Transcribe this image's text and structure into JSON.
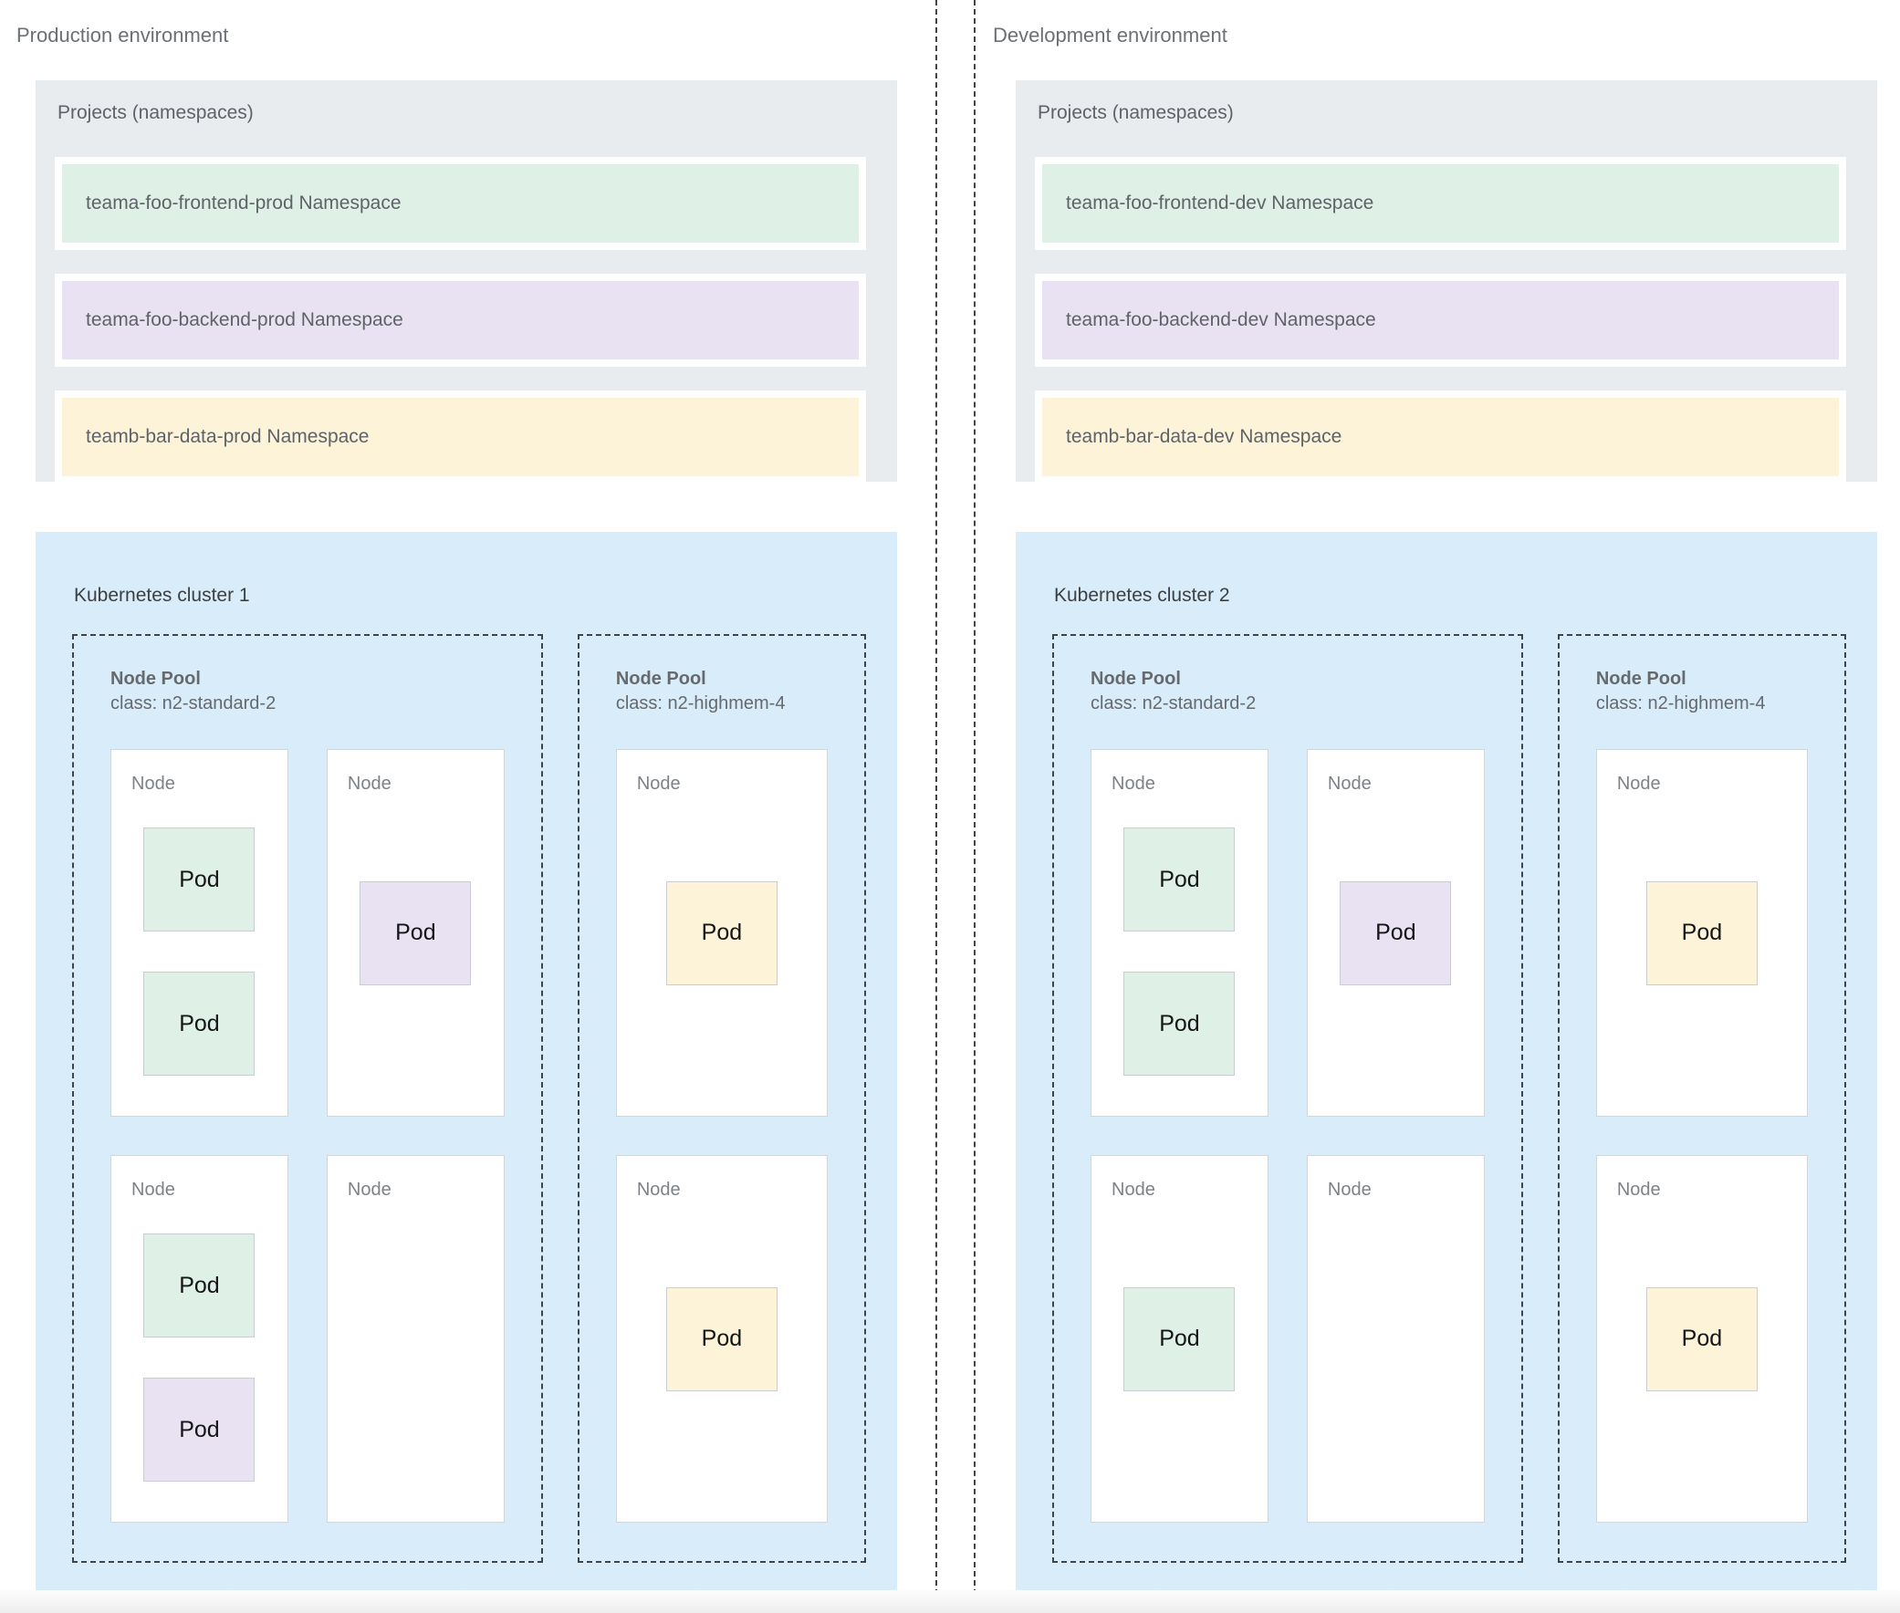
{
  "colors": {
    "green": "#dff0e7",
    "purple": "#e9e2f3",
    "yellow": "#fcf3d8",
    "cluster_bg": "#d8edf9",
    "projects_bg": "#e8ecef"
  },
  "environments": [
    {
      "title": "Production environment",
      "projects": {
        "title": "Projects (namespaces)",
        "namespaces": [
          {
            "label": "teama-foo-frontend-prod Namespace",
            "color": "green"
          },
          {
            "label": "teama-foo-backend-prod Namespace",
            "color": "purple"
          },
          {
            "label": "teamb-bar-data-prod Namespace",
            "color": "yellow"
          }
        ]
      },
      "cluster": {
        "title": "Kubernetes cluster 1",
        "node_pools": [
          {
            "title": "Node Pool",
            "class_label": "class: n2-standard-2",
            "layout": "grid-2col",
            "nodes": [
              {
                "label": "Node",
                "arrangement": "stacked",
                "pods": [
                  {
                    "label": "Pod",
                    "color": "green"
                  },
                  {
                    "label": "Pod",
                    "color": "green"
                  }
                ]
              },
              {
                "label": "Node",
                "arrangement": "centered",
                "pods": [
                  {
                    "label": "Pod",
                    "color": "purple"
                  }
                ]
              },
              {
                "label": "Node",
                "arrangement": "stacked",
                "pods": [
                  {
                    "label": "Pod",
                    "color": "green"
                  },
                  {
                    "label": "Pod",
                    "color": "purple"
                  }
                ]
              },
              {
                "label": "Node",
                "arrangement": "centered",
                "pods": []
              }
            ]
          },
          {
            "title": "Node Pool",
            "class_label": "class: n2-highmem-4",
            "layout": "grid-1col",
            "nodes": [
              {
                "label": "Node",
                "arrangement": "centered",
                "pods": [
                  {
                    "label": "Pod",
                    "color": "yellow"
                  }
                ]
              },
              {
                "label": "Node",
                "arrangement": "centered",
                "pods": [
                  {
                    "label": "Pod",
                    "color": "yellow"
                  }
                ]
              }
            ]
          }
        ]
      }
    },
    {
      "title": "Development environment",
      "projects": {
        "title": "Projects (namespaces)",
        "namespaces": [
          {
            "label": "teama-foo-frontend-dev Namespace",
            "color": "green"
          },
          {
            "label": "teama-foo-backend-dev Namespace",
            "color": "purple"
          },
          {
            "label": "teamb-bar-data-dev Namespace",
            "color": "yellow"
          }
        ]
      },
      "cluster": {
        "title": "Kubernetes cluster 2",
        "node_pools": [
          {
            "title": "Node Pool",
            "class_label": "class: n2-standard-2",
            "layout": "grid-2col",
            "nodes": [
              {
                "label": "Node",
                "arrangement": "stacked",
                "pods": [
                  {
                    "label": "Pod",
                    "color": "green"
                  },
                  {
                    "label": "Pod",
                    "color": "green"
                  }
                ]
              },
              {
                "label": "Node",
                "arrangement": "centered",
                "pods": [
                  {
                    "label": "Pod",
                    "color": "purple"
                  }
                ]
              },
              {
                "label": "Node",
                "arrangement": "centered",
                "pods": [
                  {
                    "label": "Pod",
                    "color": "green"
                  }
                ]
              },
              {
                "label": "Node",
                "arrangement": "centered",
                "pods": []
              }
            ]
          },
          {
            "title": "Node Pool",
            "class_label": "class: n2-highmem-4",
            "layout": "grid-1col",
            "nodes": [
              {
                "label": "Node",
                "arrangement": "centered",
                "pods": [
                  {
                    "label": "Pod",
                    "color": "yellow"
                  }
                ]
              },
              {
                "label": "Node",
                "arrangement": "centered",
                "pods": [
                  {
                    "label": "Pod",
                    "color": "yellow"
                  }
                ]
              }
            ]
          }
        ]
      }
    }
  ]
}
